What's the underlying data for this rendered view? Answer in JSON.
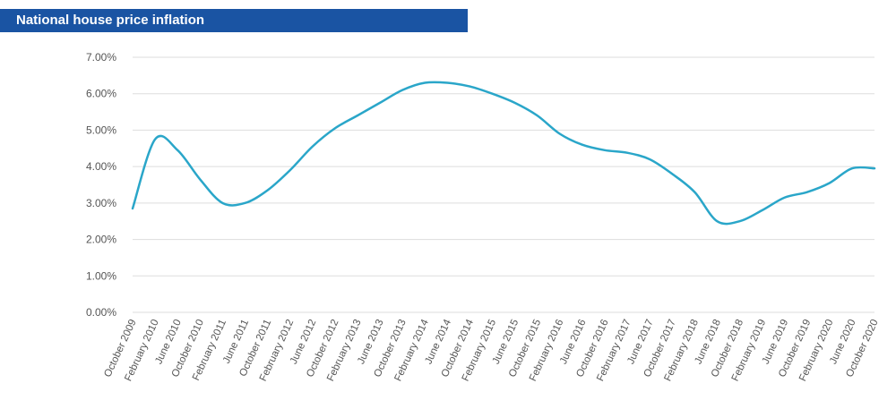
{
  "header": {
    "title": "National house price inflation"
  },
  "chart_data": {
    "type": "line",
    "title": "National house price inflation",
    "xlabel": "",
    "ylabel": "",
    "ylim": [
      0,
      7
    ],
    "y_ticks": [
      "0.00%",
      "1.00%",
      "2.00%",
      "3.00%",
      "4.00%",
      "5.00%",
      "6.00%",
      "7.00%"
    ],
    "grid": true,
    "legend": "none",
    "line_color": "#2aa6c9",
    "categories": [
      "October 2009",
      "February 2010",
      "June 2010",
      "October 2010",
      "February 2011",
      "June 2011",
      "October 2011",
      "February 2012",
      "June 2012",
      "October 2012",
      "February 2013",
      "June 2013",
      "October 2013",
      "February 2014",
      "June 2014",
      "October 2014",
      "February 2015",
      "June 2015",
      "October 2015",
      "February 2016",
      "June 2016",
      "October 2016",
      "February 2017",
      "June 2017",
      "October 2017",
      "February 2018",
      "June 2018",
      "October 2018",
      "February 2019",
      "June 2019",
      "October 2019",
      "February 2020",
      "June 2020",
      "October 2020"
    ],
    "values": [
      2.85,
      4.75,
      4.45,
      3.65,
      3.0,
      3.0,
      3.35,
      3.9,
      4.55,
      5.05,
      5.4,
      5.75,
      6.1,
      6.3,
      6.3,
      6.2,
      6.0,
      5.75,
      5.4,
      4.9,
      4.6,
      4.45,
      4.38,
      4.2,
      3.8,
      3.3,
      2.5,
      2.5,
      2.8,
      3.15,
      3.3,
      3.55,
      3.95,
      3.95
    ]
  }
}
